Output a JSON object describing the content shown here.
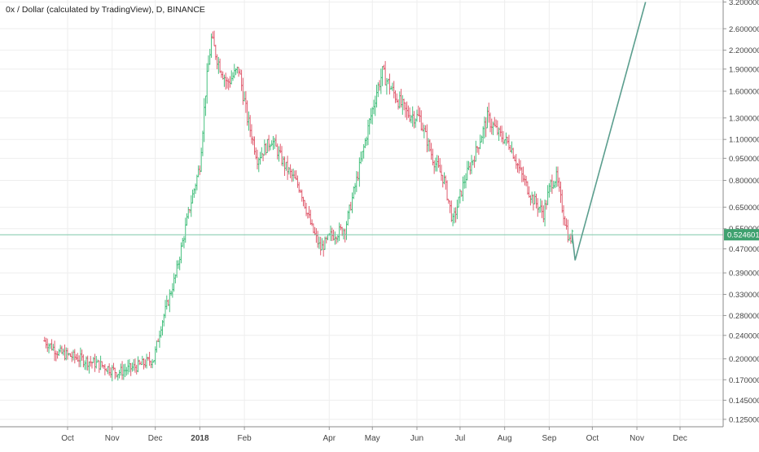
{
  "chart_data": {
    "type": "ohlc",
    "title": "0x / Dollar (calculated by TradingView), D, BINANCE",
    "scale": "log",
    "ylim": [
      0.118,
      3.25
    ],
    "y_ticks": [
      "3.200000",
      "2.600000",
      "2.200000",
      "1.900000",
      "1.600000",
      "1.300000",
      "1.100000",
      "0.950000",
      "0.800000",
      "0.650000",
      "0.550000",
      "0.470000",
      "0.390000",
      "0.330000",
      "0.280000",
      "0.240000",
      "0.200000",
      "0.170000",
      "0.145000",
      "0.125000"
    ],
    "x_ticks": [
      {
        "label": "Oct",
        "date": "2017-10-01",
        "bold": false
      },
      {
        "label": "Nov",
        "date": "2017-11-01",
        "bold": false
      },
      {
        "label": "Dec",
        "date": "2017-12-01",
        "bold": false
      },
      {
        "label": "2018",
        "date": "2018-01-01",
        "bold": true
      },
      {
        "label": "Feb",
        "date": "2018-02-01",
        "bold": false
      },
      {
        "label": "Apr",
        "date": "2018-04-01",
        "bold": false
      },
      {
        "label": "May",
        "date": "2018-05-01",
        "bold": false
      },
      {
        "label": "Jun",
        "date": "2018-06-01",
        "bold": false
      },
      {
        "label": "Jul",
        "date": "2018-07-01",
        "bold": false
      },
      {
        "label": "Aug",
        "date": "2018-08-01",
        "bold": false
      },
      {
        "label": "Sep",
        "date": "2018-09-01",
        "bold": false
      },
      {
        "label": "Oct",
        "date": "2018-10-01",
        "bold": false
      },
      {
        "label": "Nov",
        "date": "2018-11-01",
        "bold": false
      },
      {
        "label": "Dec",
        "date": "2018-12-01",
        "bold": false
      }
    ],
    "series_anchor_closes": [
      [
        "2017-09-15",
        0.23
      ],
      [
        "2017-09-25",
        0.21
      ],
      [
        "2017-10-10",
        0.2
      ],
      [
        "2017-10-25",
        0.19
      ],
      [
        "2017-11-05",
        0.18
      ],
      [
        "2017-11-20",
        0.19
      ],
      [
        "2017-11-30",
        0.2
      ],
      [
        "2017-12-05",
        0.26
      ],
      [
        "2017-12-15",
        0.38
      ],
      [
        "2017-12-25",
        0.65
      ],
      [
        "2018-01-01",
        0.9
      ],
      [
        "2018-01-05",
        1.6
      ],
      [
        "2018-01-09",
        2.4
      ],
      [
        "2018-01-14",
        2.0
      ],
      [
        "2018-01-20",
        1.7
      ],
      [
        "2018-01-28",
        1.9
      ],
      [
        "2018-02-03",
        1.3
      ],
      [
        "2018-02-10",
        0.95
      ],
      [
        "2018-02-20",
        1.1
      ],
      [
        "2018-03-01",
        0.9
      ],
      [
        "2018-03-12",
        0.75
      ],
      [
        "2018-03-20",
        0.55
      ],
      [
        "2018-03-26",
        0.47
      ],
      [
        "2018-04-02",
        0.52
      ],
      [
        "2018-04-12",
        0.55
      ],
      [
        "2018-04-20",
        0.8
      ],
      [
        "2018-04-28",
        1.2
      ],
      [
        "2018-05-04",
        1.6
      ],
      [
        "2018-05-08",
        1.85
      ],
      [
        "2018-05-15",
        1.6
      ],
      [
        "2018-05-25",
        1.35
      ],
      [
        "2018-06-03",
        1.3
      ],
      [
        "2018-06-12",
        0.95
      ],
      [
        "2018-06-20",
        0.8
      ],
      [
        "2018-06-26",
        0.58
      ],
      [
        "2018-07-04",
        0.8
      ],
      [
        "2018-07-12",
        1.0
      ],
      [
        "2018-07-20",
        1.3
      ],
      [
        "2018-07-28",
        1.15
      ],
      [
        "2018-08-05",
        1.05
      ],
      [
        "2018-08-12",
        0.85
      ],
      [
        "2018-08-20",
        0.7
      ],
      [
        "2018-08-28",
        0.62
      ],
      [
        "2018-09-02",
        0.78
      ],
      [
        "2018-09-06",
        0.82
      ],
      [
        "2018-09-10",
        0.65
      ],
      [
        "2018-09-15",
        0.5
      ],
      [
        "2018-09-17",
        0.52
      ]
    ],
    "projection": {
      "points": [
        [
          "2018-09-17",
          0.525
        ],
        [
          "2018-09-19",
          0.43
        ],
        [
          "2018-11-07",
          3.2
        ]
      ],
      "color": "#5b9e8e"
    },
    "last_price": {
      "label": "0.524601",
      "value": 0.524601,
      "color": "#3fa16f"
    },
    "colors": {
      "up": "#47c07f",
      "down": "#e05d6f",
      "grid": "#eeeeee",
      "axis": "#555555"
    },
    "grid": true
  }
}
